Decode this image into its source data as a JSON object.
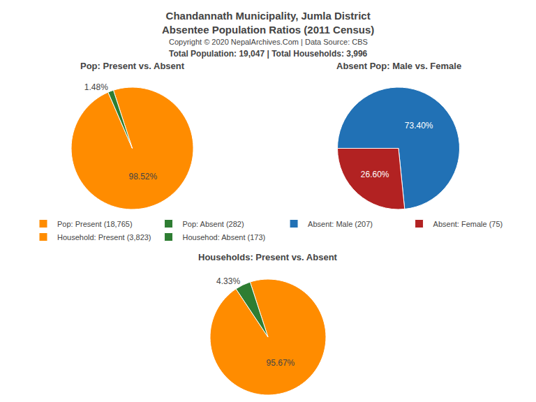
{
  "title": "Chandannath Municipality, Jumla District",
  "subtitle": "Absentee Population Ratios (2011 Census)",
  "annotations": [
    "Copyright © 2020 NepalArchives.Com | Data Source: CBS",
    "Total Population: 19,047 | Total Households: 3,996"
  ],
  "legend": "center",
  "chart_data": [
    {
      "type": "pie",
      "title": "Pop: Present vs. Absent",
      "categories": [
        "Pop: Present (18,765)",
        "Pop: Absent (282)"
      ],
      "values": [
        98.52,
        1.48
      ],
      "value_labels": [
        "98.52%",
        "1.48%"
      ],
      "colors": [
        "#FF8C00",
        "#2E7D32"
      ],
      "data_labels": true
    },
    {
      "type": "pie",
      "title": "Absent Pop: Male vs. Female",
      "categories": [
        "Absent: Male (207)",
        "Absent: Female (75)"
      ],
      "values": [
        73.4,
        26.6
      ],
      "value_labels": [
        "73.40%",
        "26.60%"
      ],
      "colors": [
        "#2171B5",
        "#B22222"
      ],
      "data_labels": true
    },
    {
      "type": "pie",
      "title": "Households: Present vs. Absent",
      "categories": [
        "Household: Present (3,823)",
        "Househod: Absent (173)"
      ],
      "values": [
        95.67,
        4.33
      ],
      "value_labels": [
        "95.67%",
        "4.33%"
      ],
      "colors": [
        "#FF8C00",
        "#2E7D32"
      ],
      "data_labels": true
    }
  ]
}
